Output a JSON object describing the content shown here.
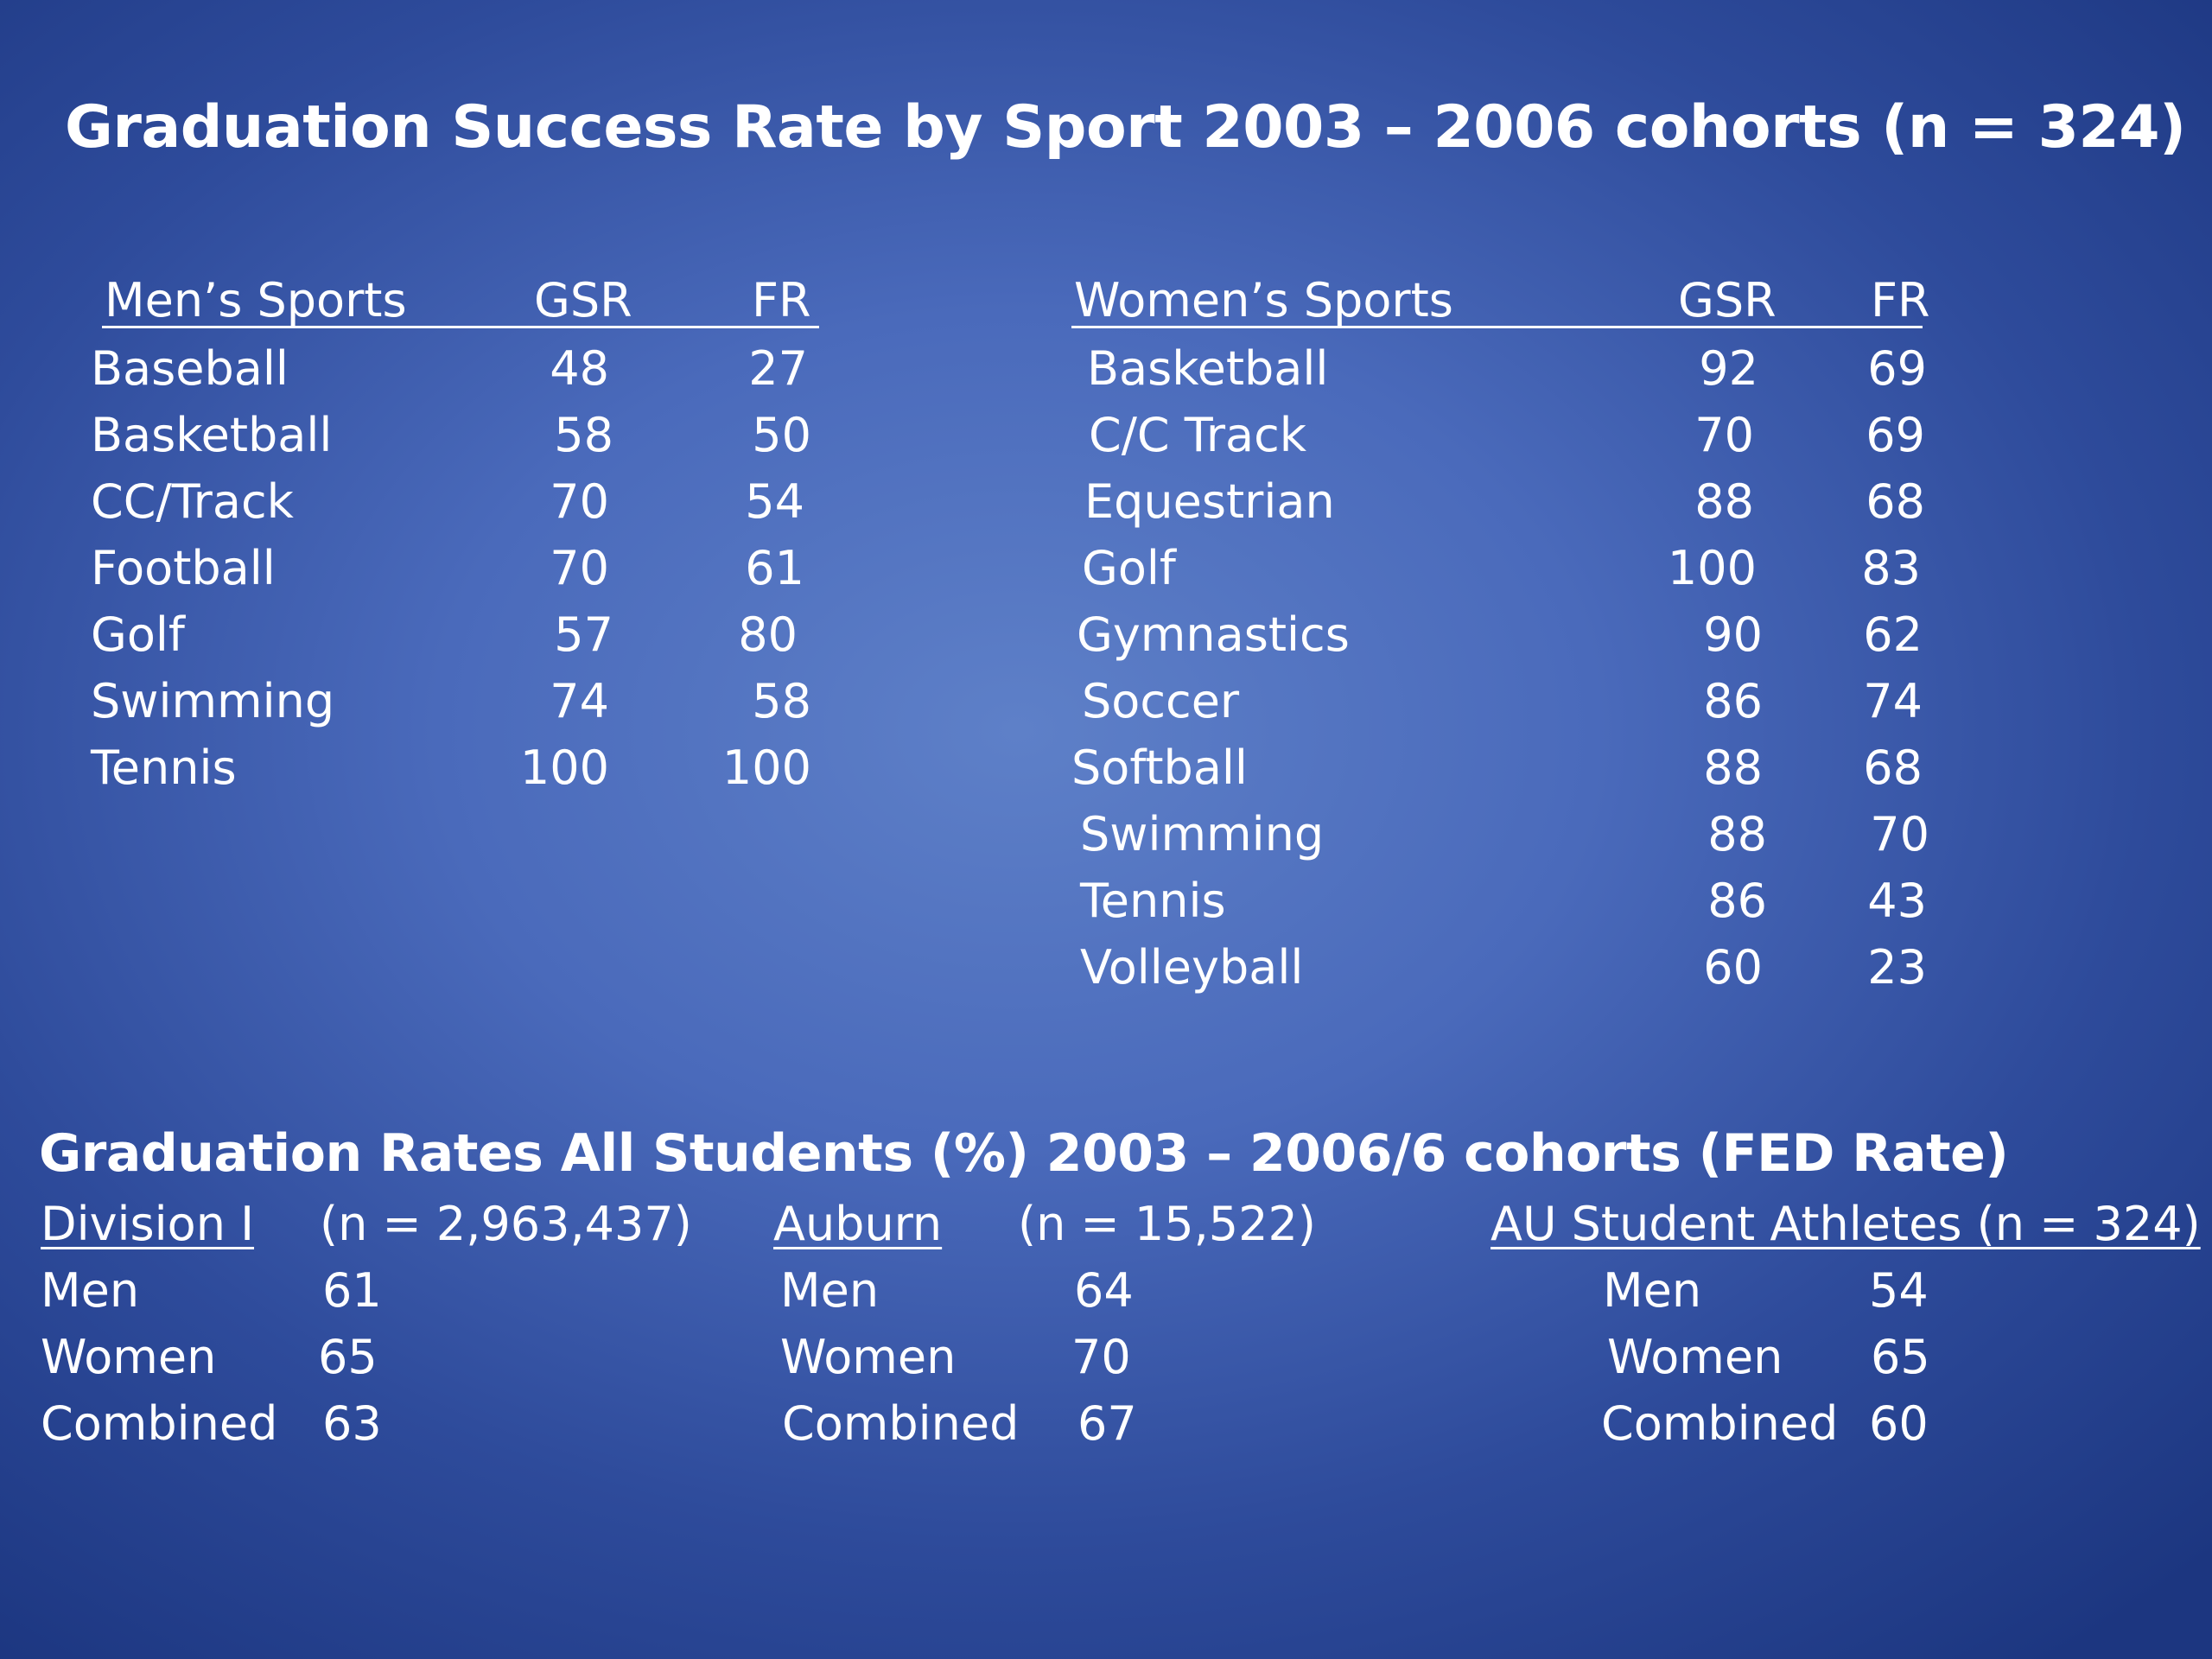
{
  "title": "Graduation Success Rate by Sport   2003 – 2006 cohorts  (n = 324)",
  "mens": {
    "header": {
      "sport": "Men’s Sports",
      "gsr": "GSR",
      "fr": "FR"
    },
    "rows": [
      {
        "sport": "Baseball",
        "gsr": "48",
        "fr": "27"
      },
      {
        "sport": "Basketball",
        "gsr": "58",
        "fr": "50"
      },
      {
        "sport": "CC/Track",
        "gsr": "70",
        "fr": "54"
      },
      {
        "sport": "Football",
        "gsr": "70",
        "fr": "61"
      },
      {
        "sport": "Golf",
        "gsr": "57",
        "fr": "80"
      },
      {
        "sport": "Swimming",
        "gsr": "74",
        "fr": "58"
      },
      {
        "sport": "Tennis",
        "gsr": "100",
        "fr": "100"
      }
    ]
  },
  "womens": {
    "header": {
      "sport": "Women’s Sports",
      "gsr": "GSR",
      "fr": "FR"
    },
    "rows": [
      {
        "sport": "Basketball",
        "gsr": "92",
        "fr": "69"
      },
      {
        "sport": "C/C Track",
        "gsr": "70",
        "fr": "69"
      },
      {
        "sport": "Equestrian",
        "gsr": "88",
        "fr": "68"
      },
      {
        "sport": "Golf",
        "gsr": "100",
        "fr": "83"
      },
      {
        "sport": "Gymnastics",
        "gsr": "90",
        "fr": "62"
      },
      {
        "sport": "Soccer",
        "gsr": "86",
        "fr": "74"
      },
      {
        "sport": "Softball",
        "gsr": "88",
        "fr": "68"
      },
      {
        "sport": "Swimming",
        "gsr": "88",
        "fr": "70"
      },
      {
        "sport": "Tennis",
        "gsr": "86",
        "fr": "43"
      },
      {
        "sport": "Volleyball",
        "gsr": "60",
        "fr": "23"
      }
    ]
  },
  "grad_rates": {
    "title": "Graduation Rates  All Students (%)  2003 – 2006/6 cohorts  (FED Rate)",
    "groups": [
      {
        "name": "Division I",
        "n": "(n = 2,963,437)",
        "rows": [
          {
            "label": "Men",
            "value": "61"
          },
          {
            "label": "Women",
            "value": "65"
          },
          {
            "label": "Combined",
            "value": "63"
          }
        ]
      },
      {
        "name": "Auburn",
        "n": "(n = 15,522)",
        "rows": [
          {
            "label": "Men",
            "value": "64"
          },
          {
            "label": "Women",
            "value": "70"
          },
          {
            "label": "Combined",
            "value": "67"
          }
        ]
      },
      {
        "name": "AU Student Athletes (n = 324)",
        "rows": [
          {
            "label": "Men",
            "value": "54"
          },
          {
            "label": "Women",
            "value": "65"
          },
          {
            "label": "Combined",
            "value": "60"
          }
        ]
      }
    ]
  }
}
